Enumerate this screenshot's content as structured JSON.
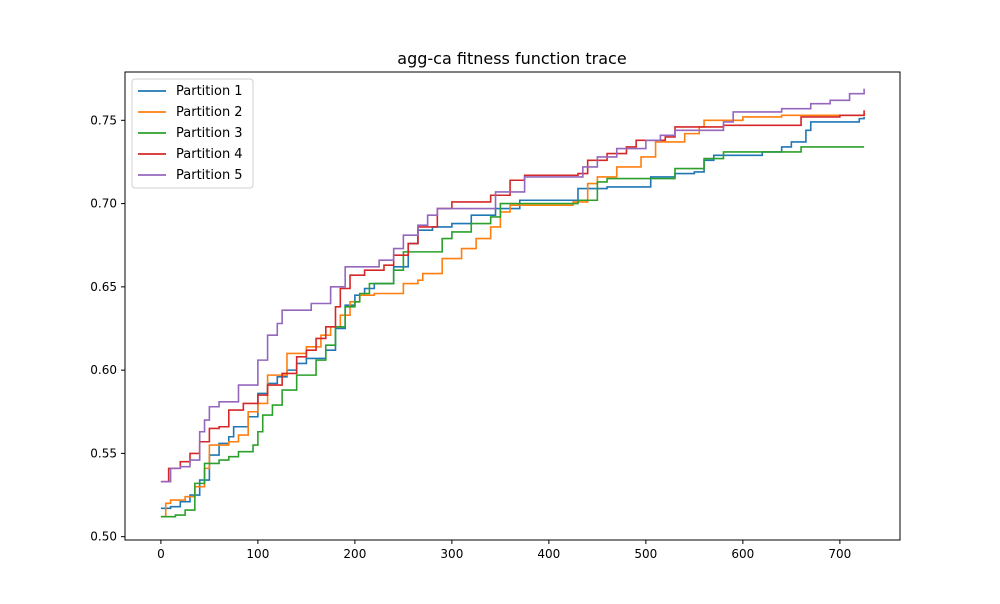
{
  "chart_data": {
    "type": "line",
    "title": "agg-ca fitness function trace",
    "xlabel": "",
    "ylabel": "",
    "xlim": [
      -37,
      762
    ],
    "ylim": [
      0.498,
      0.779
    ],
    "xticks": [
      0,
      100,
      200,
      300,
      400,
      500,
      600,
      700
    ],
    "yticks": [
      0.5,
      0.55,
      0.6,
      0.65,
      0.7,
      0.75
    ],
    "ytick_labels": [
      "0.50",
      "0.55",
      "0.60",
      "0.65",
      "0.70",
      "0.75"
    ],
    "grid": false,
    "legend_position": "upper-left",
    "step": true,
    "series": [
      {
        "name": "Partition 1",
        "color": "#1f77b4",
        "points": [
          [
            0,
            0.517
          ],
          [
            10,
            0.518
          ],
          [
            20,
            0.521
          ],
          [
            30,
            0.525
          ],
          [
            40,
            0.534
          ],
          [
            50,
            0.549
          ],
          [
            60,
            0.556
          ],
          [
            70,
            0.56
          ],
          [
            75,
            0.566
          ],
          [
            90,
            0.572
          ],
          [
            100,
            0.586
          ],
          [
            110,
            0.592
          ],
          [
            120,
            0.596
          ],
          [
            130,
            0.6
          ],
          [
            140,
            0.604
          ],
          [
            150,
            0.607
          ],
          [
            170,
            0.612
          ],
          [
            180,
            0.625
          ],
          [
            190,
            0.639
          ],
          [
            200,
            0.645
          ],
          [
            210,
            0.649
          ],
          [
            220,
            0.652
          ],
          [
            240,
            0.662
          ],
          [
            255,
            0.676
          ],
          [
            265,
            0.684
          ],
          [
            280,
            0.686
          ],
          [
            300,
            0.688
          ],
          [
            320,
            0.693
          ],
          [
            345,
            0.697
          ],
          [
            370,
            0.702
          ],
          [
            430,
            0.709
          ],
          [
            460,
            0.71
          ],
          [
            505,
            0.716
          ],
          [
            530,
            0.718
          ],
          [
            550,
            0.719
          ],
          [
            560,
            0.726
          ],
          [
            570,
            0.729
          ],
          [
            600,
            0.729
          ],
          [
            620,
            0.731
          ],
          [
            640,
            0.734
          ],
          [
            650,
            0.737
          ],
          [
            665,
            0.744
          ],
          [
            670,
            0.749
          ],
          [
            720,
            0.751
          ],
          [
            725,
            0.752
          ]
        ]
      },
      {
        "name": "Partition 2",
        "color": "#ff7f0e",
        "points": [
          [
            0,
            0.512
          ],
          [
            5,
            0.52
          ],
          [
            10,
            0.522
          ],
          [
            25,
            0.524
          ],
          [
            35,
            0.53
          ],
          [
            45,
            0.541
          ],
          [
            50,
            0.555
          ],
          [
            70,
            0.557
          ],
          [
            80,
            0.561
          ],
          [
            90,
            0.575
          ],
          [
            100,
            0.58
          ],
          [
            110,
            0.597
          ],
          [
            130,
            0.61
          ],
          [
            150,
            0.614
          ],
          [
            165,
            0.621
          ],
          [
            175,
            0.626
          ],
          [
            185,
            0.633
          ],
          [
            195,
            0.641
          ],
          [
            205,
            0.645
          ],
          [
            220,
            0.646
          ],
          [
            250,
            0.652
          ],
          [
            265,
            0.654
          ],
          [
            270,
            0.658
          ],
          [
            290,
            0.667
          ],
          [
            310,
            0.673
          ],
          [
            325,
            0.679
          ],
          [
            340,
            0.686
          ],
          [
            350,
            0.695
          ],
          [
            360,
            0.699
          ],
          [
            425,
            0.701
          ],
          [
            440,
            0.712
          ],
          [
            450,
            0.716
          ],
          [
            470,
            0.722
          ],
          [
            495,
            0.728
          ],
          [
            510,
            0.737
          ],
          [
            540,
            0.742
          ],
          [
            555,
            0.746
          ],
          [
            560,
            0.75
          ],
          [
            600,
            0.752
          ],
          [
            640,
            0.753
          ],
          [
            680,
            0.753
          ],
          [
            725,
            0.754
          ]
        ]
      },
      {
        "name": "Partition 3",
        "color": "#2ca02c",
        "points": [
          [
            0,
            0.512
          ],
          [
            15,
            0.513
          ],
          [
            25,
            0.516
          ],
          [
            35,
            0.532
          ],
          [
            45,
            0.544
          ],
          [
            60,
            0.546
          ],
          [
            70,
            0.548
          ],
          [
            80,
            0.551
          ],
          [
            95,
            0.555
          ],
          [
            100,
            0.563
          ],
          [
            105,
            0.573
          ],
          [
            115,
            0.579
          ],
          [
            125,
            0.588
          ],
          [
            140,
            0.597
          ],
          [
            160,
            0.606
          ],
          [
            170,
            0.615
          ],
          [
            180,
            0.626
          ],
          [
            190,
            0.638
          ],
          [
            200,
            0.641
          ],
          [
            205,
            0.646
          ],
          [
            215,
            0.652
          ],
          [
            240,
            0.66
          ],
          [
            250,
            0.671
          ],
          [
            290,
            0.679
          ],
          [
            300,
            0.683
          ],
          [
            320,
            0.688
          ],
          [
            340,
            0.692
          ],
          [
            350,
            0.7
          ],
          [
            430,
            0.702
          ],
          [
            450,
            0.713
          ],
          [
            460,
            0.715
          ],
          [
            530,
            0.721
          ],
          [
            560,
            0.727
          ],
          [
            580,
            0.731
          ],
          [
            620,
            0.731
          ],
          [
            660,
            0.734
          ],
          [
            725,
            0.734
          ]
        ]
      },
      {
        "name": "Partition 4",
        "color": "#d62728",
        "points": [
          [
            0,
            0.533
          ],
          [
            8,
            0.541
          ],
          [
            20,
            0.545
          ],
          [
            30,
            0.55
          ],
          [
            40,
            0.557
          ],
          [
            50,
            0.565
          ],
          [
            60,
            0.566
          ],
          [
            70,
            0.576
          ],
          [
            85,
            0.58
          ],
          [
            100,
            0.585
          ],
          [
            110,
            0.591
          ],
          [
            125,
            0.598
          ],
          [
            140,
            0.608
          ],
          [
            150,
            0.612
          ],
          [
            160,
            0.619
          ],
          [
            170,
            0.626
          ],
          [
            180,
            0.638
          ],
          [
            185,
            0.649
          ],
          [
            195,
            0.657
          ],
          [
            210,
            0.66
          ],
          [
            230,
            0.663
          ],
          [
            240,
            0.669
          ],
          [
            255,
            0.676
          ],
          [
            265,
            0.686
          ],
          [
            285,
            0.697
          ],
          [
            300,
            0.701
          ],
          [
            340,
            0.705
          ],
          [
            360,
            0.714
          ],
          [
            375,
            0.717
          ],
          [
            430,
            0.718
          ],
          [
            440,
            0.726
          ],
          [
            460,
            0.73
          ],
          [
            480,
            0.734
          ],
          [
            490,
            0.738
          ],
          [
            520,
            0.74
          ],
          [
            530,
            0.746
          ],
          [
            580,
            0.747
          ],
          [
            660,
            0.752
          ],
          [
            700,
            0.753
          ],
          [
            725,
            0.756
          ]
        ]
      },
      {
        "name": "Partition 5",
        "color": "#9467bd",
        "points": [
          [
            0,
            0.533
          ],
          [
            10,
            0.541
          ],
          [
            20,
            0.542
          ],
          [
            30,
            0.546
          ],
          [
            40,
            0.563
          ],
          [
            45,
            0.57
          ],
          [
            50,
            0.578
          ],
          [
            60,
            0.581
          ],
          [
            80,
            0.591
          ],
          [
            100,
            0.606
          ],
          [
            110,
            0.621
          ],
          [
            120,
            0.628
          ],
          [
            125,
            0.636
          ],
          [
            155,
            0.64
          ],
          [
            175,
            0.65
          ],
          [
            190,
            0.662
          ],
          [
            225,
            0.666
          ],
          [
            240,
            0.673
          ],
          [
            250,
            0.681
          ],
          [
            265,
            0.687
          ],
          [
            275,
            0.693
          ],
          [
            285,
            0.697
          ],
          [
            345,
            0.707
          ],
          [
            375,
            0.716
          ],
          [
            435,
            0.722
          ],
          [
            450,
            0.728
          ],
          [
            470,
            0.733
          ],
          [
            500,
            0.738
          ],
          [
            515,
            0.741
          ],
          [
            530,
            0.744
          ],
          [
            580,
            0.749
          ],
          [
            590,
            0.755
          ],
          [
            640,
            0.757
          ],
          [
            670,
            0.76
          ],
          [
            690,
            0.762
          ],
          [
            710,
            0.766
          ],
          [
            725,
            0.769
          ]
        ]
      }
    ]
  }
}
